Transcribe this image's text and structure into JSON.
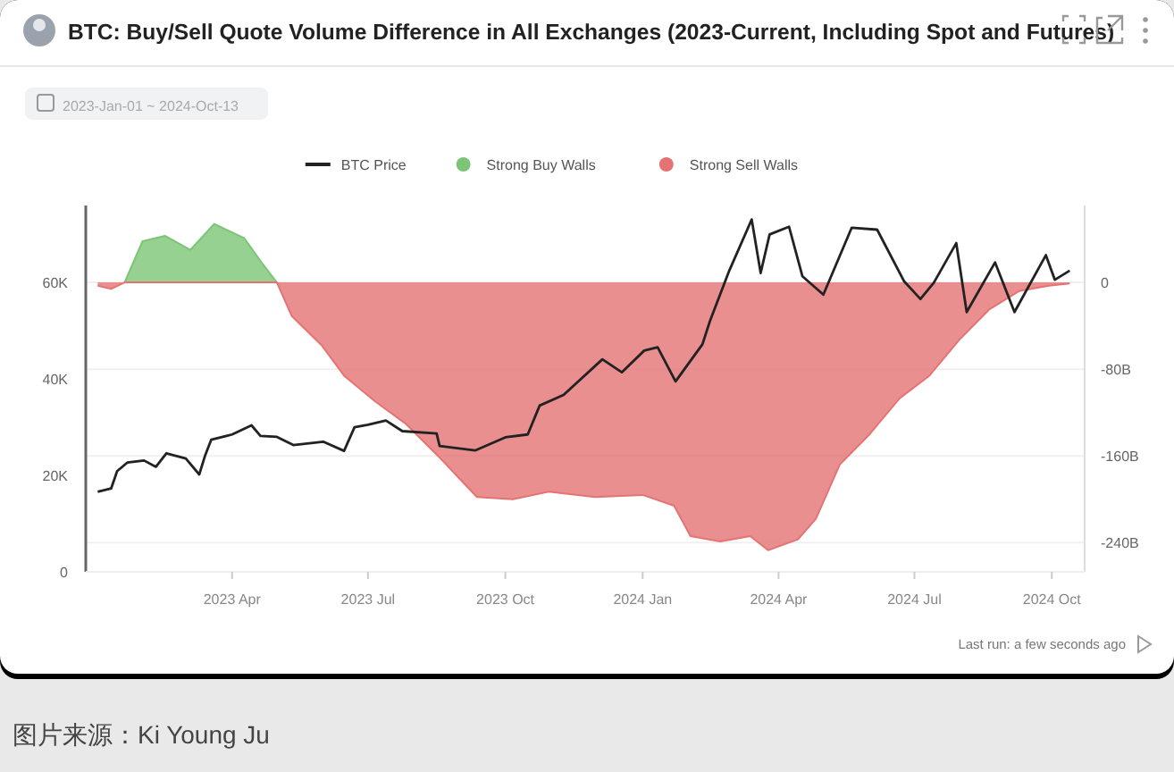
{
  "chart_data": {
    "type": "area",
    "title": "BTC: Buy/Sell Quote Volume Difference in All Exchanges (2023-Current, Including Spot and Futures)",
    "subtitle": "2023-Jan-01 ~ 2024-Oct-13",
    "annotations": [
      "Last run: a few seconds ago",
      "图片来源：Ki Young Ju"
    ],
    "xlim": [
      "2022-12-24",
      "2024-10-23"
    ],
    "xticks": [
      {
        "value": "2023-04-01",
        "label": "2023 Apr"
      },
      {
        "value": "2023-07-01",
        "label": "2023 Jul"
      },
      {
        "value": "2023-10-01",
        "label": "2023 Oct"
      },
      {
        "value": "2024-01-01",
        "label": "2024 Jan"
      },
      {
        "value": "2024-04-01",
        "label": "2024 Apr"
      },
      {
        "value": "2024-07-01",
        "label": "2024 Jul"
      },
      {
        "value": "2024-10-01",
        "label": "2024 Oct"
      }
    ],
    "ylim": [
      0,
      76000
    ],
    "yticks": [
      0,
      {
        "value": 20000,
        "label": "20K"
      },
      {
        "value": 40000,
        "label": "40K"
      },
      {
        "value": 60000,
        "label": "60K"
      }
    ],
    "y2lim": [
      -267,
      71
    ],
    "y2ticks": [
      0,
      {
        "value": -80,
        "label": "-80B"
      },
      {
        "value": -160,
        "label": "-160B"
      },
      {
        "value": -240,
        "label": "-240B"
      }
    ],
    "grid": "y2",
    "legend": "top",
    "series": [
      {
        "name": "Strong Buy Walls",
        "axis": "y2",
        "color": "#7cc576",
        "x": [
          "2023-01-19",
          "2023-01-31",
          "2023-02-15",
          "2023-03-04",
          "2023-03-20",
          "2023-04-09",
          "2023-04-21",
          "2023-05-01"
        ],
        "values": [
          0,
          38,
          43,
          30,
          54,
          41,
          18,
          0
        ]
      },
      {
        "name": "Strong Sell Walls",
        "axis": "y2",
        "color": "#e57373",
        "x": [
          "2023-01-01",
          "2023-01-10",
          "2023-01-19",
          "2023-05-01",
          "2023-05-11",
          "2023-05-31",
          "2023-06-15",
          "2023-07-06",
          "2023-07-26",
          "2023-08-19",
          "2023-09-12",
          "2023-10-06",
          "2023-10-30",
          "2023-11-30",
          "2024-01-01",
          "2024-01-22",
          "2024-02-02",
          "2024-02-22",
          "2024-03-13",
          "2024-03-25",
          "2024-04-14",
          "2024-04-26",
          "2024-05-12",
          "2024-06-01",
          "2024-06-21",
          "2024-07-11",
          "2024-07-31",
          "2024-08-20",
          "2024-09-09",
          "2024-09-29",
          "2024-10-13"
        ],
        "values": [
          -3,
          -6,
          0,
          0,
          -31,
          -58,
          -86,
          -110,
          -130,
          -163,
          -198,
          -200,
          -193,
          -198,
          -196,
          -206,
          -234,
          -239,
          -234,
          -247,
          -237,
          -218,
          -168,
          -140,
          -107,
          -86,
          -53,
          -25,
          -8,
          -3,
          -1
        ]
      },
      {
        "name": "BTC Price",
        "type": "line",
        "axis": "y",
        "color": "#222222",
        "x": [
          "2023-01-01",
          "2023-01-10",
          "2023-01-14",
          "2023-01-21",
          "2023-02-01",
          "2023-02-09",
          "2023-02-16",
          "2023-03-01",
          "2023-03-10",
          "2023-03-14",
          "2023-03-18",
          "2023-04-01",
          "2023-04-14",
          "2023-04-20",
          "2023-05-01",
          "2023-05-12",
          "2023-06-01",
          "2023-06-15",
          "2023-06-22",
          "2023-07-01",
          "2023-07-13",
          "2023-07-24",
          "2023-08-16",
          "2023-08-18",
          "2023-09-11",
          "2023-10-01",
          "2023-10-16",
          "2023-10-24",
          "2023-11-09",
          "2023-12-05",
          "2023-12-18",
          "2024-01-02",
          "2024-01-11",
          "2024-01-23",
          "2024-02-10",
          "2024-02-15",
          "2024-02-28",
          "2024-03-14",
          "2024-03-20",
          "2024-03-26",
          "2024-04-08",
          "2024-04-17",
          "2024-05-01",
          "2024-05-20",
          "2024-06-06",
          "2024-06-24",
          "2024-07-05",
          "2024-07-14",
          "2024-07-29",
          "2024-08-05",
          "2024-08-24",
          "2024-09-06",
          "2024-09-27",
          "2024-10-03",
          "2024-10-13"
        ],
        "values": [
          16600,
          17300,
          20900,
          22700,
          23100,
          21800,
          24600,
          23500,
          20200,
          24200,
          27400,
          28500,
          30400,
          28200,
          28000,
          26300,
          27000,
          25100,
          30000,
          30500,
          31400,
          29200,
          28700,
          26100,
          25200,
          27900,
          28500,
          34500,
          36700,
          44100,
          41400,
          45900,
          46600,
          39500,
          47200,
          52000,
          62500,
          73100,
          62000,
          70000,
          71600,
          61300,
          57500,
          71400,
          71000,
          60300,
          56600,
          60000,
          68200,
          53900,
          64200,
          53900,
          65700,
          60600,
          62500
        ]
      }
    ]
  }
}
